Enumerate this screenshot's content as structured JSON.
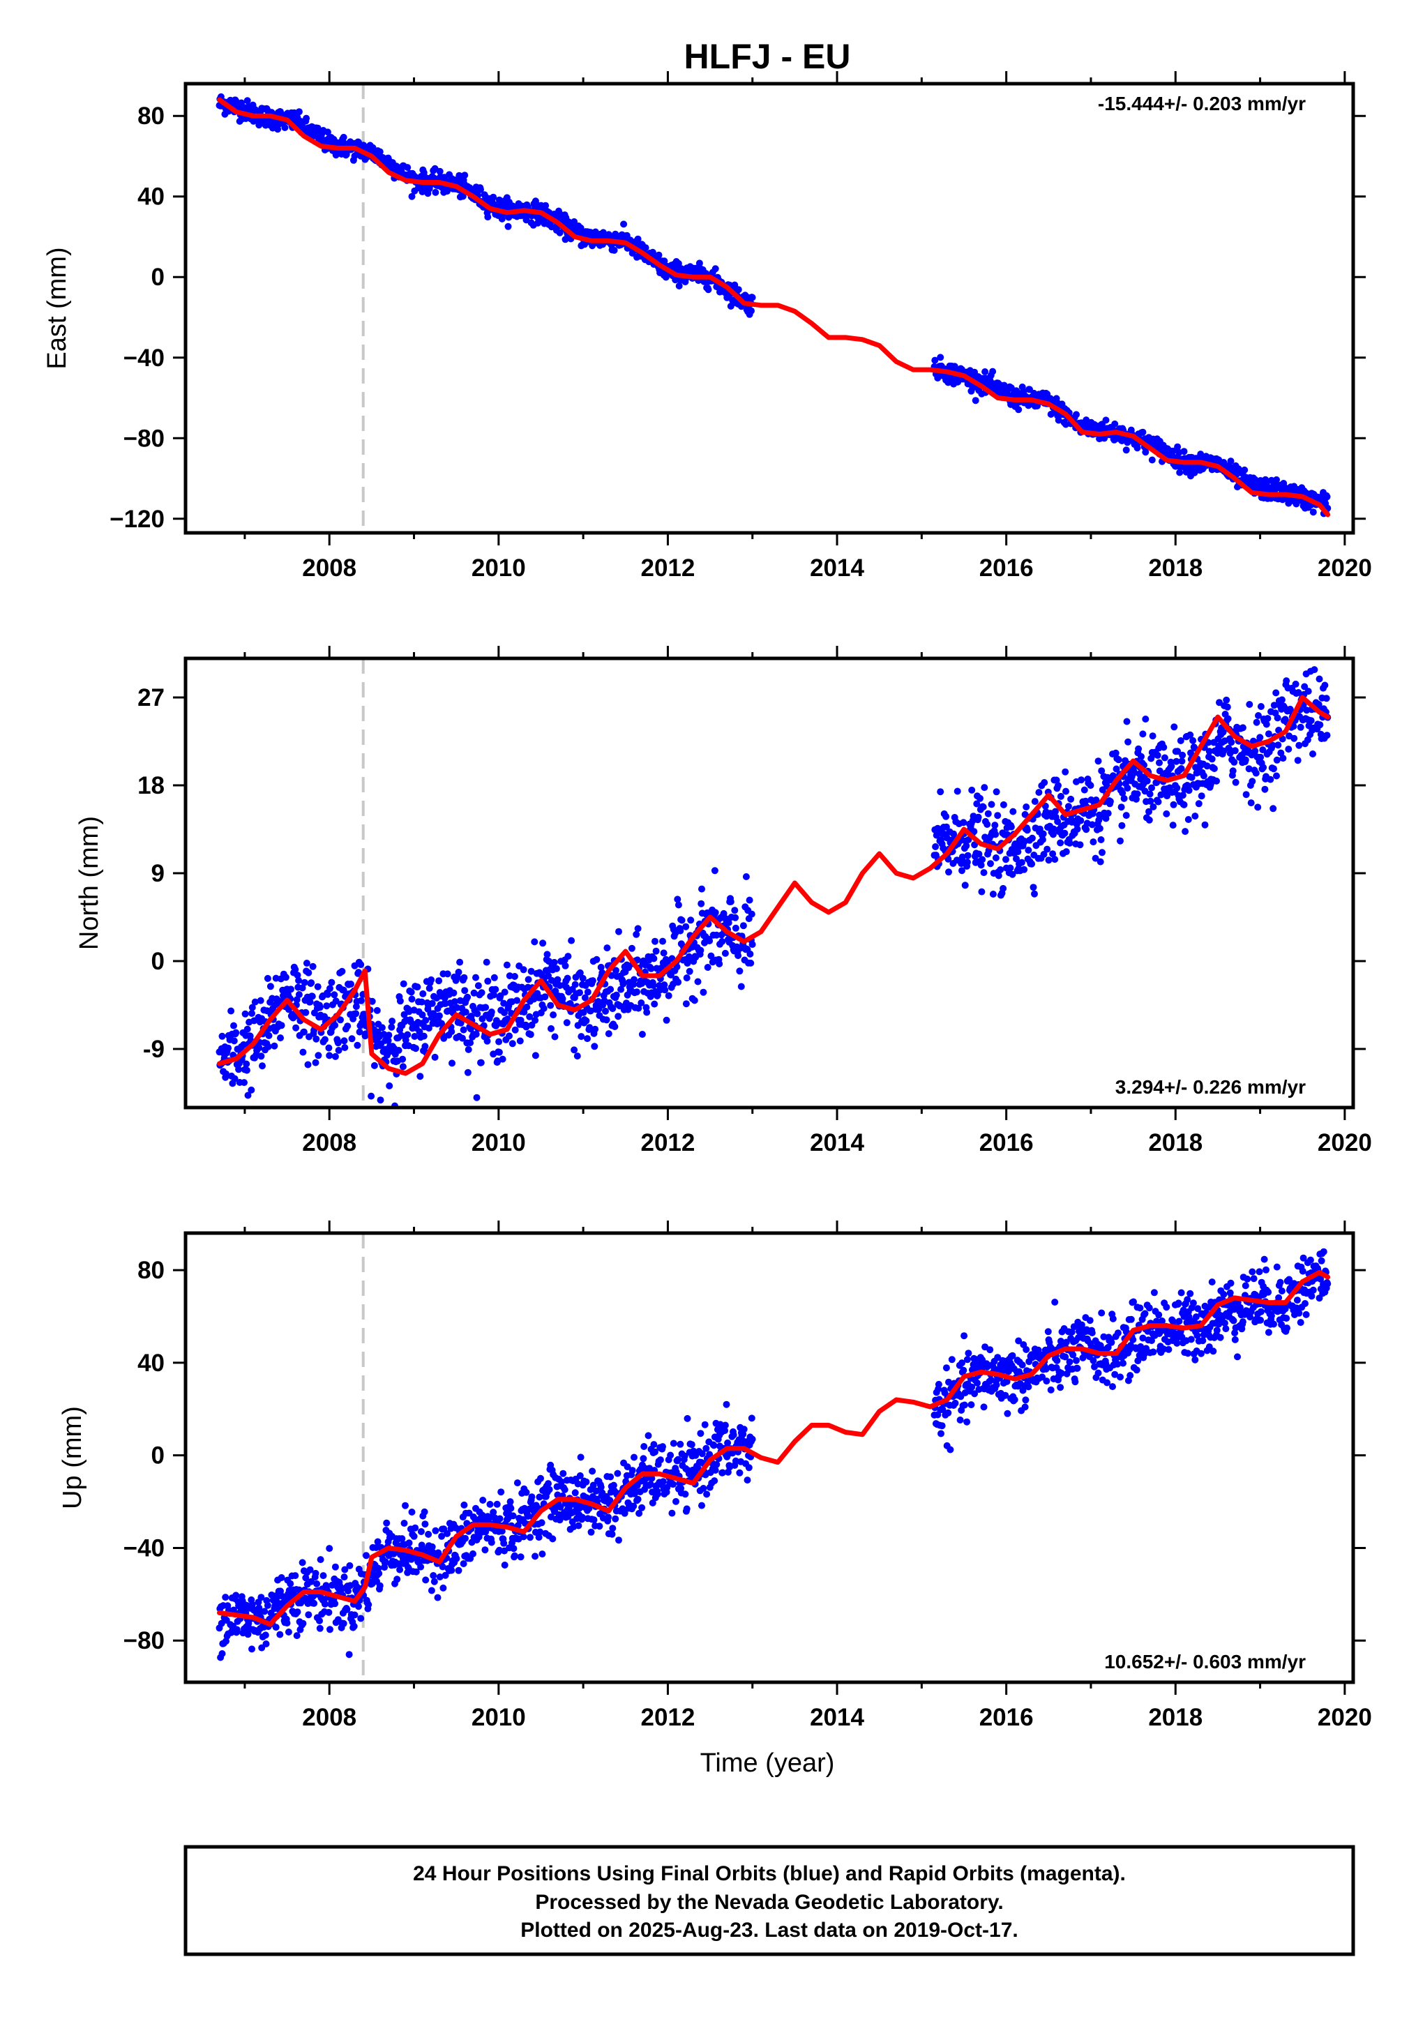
{
  "chart_data": {
    "type": "scatter",
    "title": "HLFJ - EU",
    "xlabel": "Time (year)",
    "xlim": [
      2006.3,
      2020.1
    ],
    "x_ticks": [
      2008,
      2010,
      2012,
      2014,
      2016,
      2018,
      2020
    ],
    "x_tick_labels": [
      "2008",
      "2010",
      "2012",
      "2014",
      "2016",
      "2018",
      "2020"
    ],
    "grid": false,
    "equipment_change_epoch": 2008.4,
    "observed_span": [
      2006.7,
      2019.8
    ],
    "data_gap": [
      2013.0,
      2015.15
    ],
    "series_colors": {
      "daily_positions": "#0000ff",
      "model_fit": "#ff0000",
      "equipment_change_line": "#c8c8c8"
    },
    "panels": [
      {
        "name": "east",
        "ylabel": "East (mm)",
        "ylim": [
          -127,
          96
        ],
        "y_ticks": [
          80,
          40,
          0,
          -40,
          -80,
          -120
        ],
        "y_tick_labels": [
          "80",
          "40",
          "0",
          "−40",
          "−80",
          "−120"
        ],
        "rate_text": "-15.444+/- 0.203 mm/yr",
        "rate_position": "top-right",
        "model_fit": {
          "x": [
            2006.7,
            2006.9,
            2007.1,
            2007.3,
            2007.5,
            2007.7,
            2007.9,
            2008.1,
            2008.3,
            2008.5,
            2008.7,
            2008.9,
            2009.1,
            2009.3,
            2009.5,
            2009.7,
            2009.9,
            2010.1,
            2010.3,
            2010.5,
            2010.7,
            2010.9,
            2011.1,
            2011.3,
            2011.5,
            2011.7,
            2011.9,
            2012.1,
            2012.3,
            2012.5,
            2012.7,
            2012.9,
            2013.1,
            2013.3,
            2013.5,
            2013.7,
            2013.9,
            2014.1,
            2014.3,
            2014.5,
            2014.7,
            2014.9,
            2015.1,
            2015.3,
            2015.5,
            2015.7,
            2015.9,
            2016.1,
            2016.3,
            2016.5,
            2016.7,
            2016.9,
            2017.1,
            2017.3,
            2017.5,
            2017.7,
            2017.9,
            2018.1,
            2018.3,
            2018.5,
            2018.7,
            2018.9,
            2019.1,
            2019.3,
            2019.5,
            2019.7,
            2019.8
          ],
          "y": [
            88,
            82,
            80,
            80,
            78,
            70,
            65,
            64,
            64,
            60,
            52,
            48,
            47,
            47,
            45,
            40,
            34,
            32,
            33,
            32,
            27,
            20,
            18,
            18,
            17,
            12,
            6,
            1,
            0,
            0,
            -5,
            -13,
            -14,
            -14,
            -17,
            -23,
            -30,
            -30,
            -31,
            -34,
            -42,
            -46,
            -46,
            -47,
            -49,
            -54,
            -60,
            -61,
            -61,
            -63,
            -68,
            -77,
            -78,
            -77,
            -79,
            -85,
            -91,
            -92,
            -92,
            -94,
            -100,
            -107,
            -108,
            -108,
            -109,
            -113,
            -118
          ]
        },
        "daily_positions": {
          "segments": [
            [
              2006.7,
              2013.0
            ],
            [
              2015.15,
              2019.8
            ]
          ],
          "scatter_mm": 2.5,
          "x": [
            2006.8,
            2007.2,
            2007.6,
            2008.0,
            2008.5,
            2009.0,
            2009.5,
            2010.0,
            2010.5,
            2011.0,
            2011.5,
            2012.0,
            2012.5,
            2012.9,
            2015.3,
            2015.7,
            2016.1,
            2016.5,
            2016.9,
            2017.3,
            2017.7,
            2018.1,
            2018.5,
            2018.9,
            2019.3,
            2019.7
          ],
          "y": [
            86,
            80,
            77,
            66,
            62,
            48,
            46,
            34,
            32,
            20,
            18,
            3,
            0,
            -12,
            -47,
            -52,
            -60,
            -62,
            -75,
            -77,
            -83,
            -92,
            -93,
            -104,
            -107,
            -112
          ]
        }
      },
      {
        "name": "north",
        "ylabel": "North (mm)",
        "ylim": [
          -15,
          31
        ],
        "y_ticks": [
          27,
          18,
          9,
          0,
          -9
        ],
        "y_tick_labels": [
          "27",
          "18",
          "9",
          "0",
          "-9"
        ],
        "rate_text": "3.294+/- 0.226 mm/yr",
        "rate_position": "bottom-right",
        "model_fit": {
          "x": [
            2006.7,
            2006.9,
            2007.1,
            2007.3,
            2007.5,
            2007.7,
            2007.9,
            2008.1,
            2008.3,
            2008.42,
            2008.5,
            2008.7,
            2008.9,
            2009.1,
            2009.3,
            2009.5,
            2009.7,
            2009.9,
            2010.1,
            2010.3,
            2010.5,
            2010.7,
            2010.9,
            2011.1,
            2011.3,
            2011.5,
            2011.7,
            2011.9,
            2012.1,
            2012.3,
            2012.5,
            2012.7,
            2012.9,
            2013.1,
            2013.3,
            2013.5,
            2013.7,
            2013.9,
            2014.1,
            2014.3,
            2014.5,
            2014.7,
            2014.9,
            2015.1,
            2015.3,
            2015.5,
            2015.7,
            2015.9,
            2016.1,
            2016.3,
            2016.5,
            2016.7,
            2016.9,
            2017.1,
            2017.3,
            2017.5,
            2017.7,
            2017.9,
            2018.1,
            2018.3,
            2018.5,
            2018.7,
            2018.9,
            2019.1,
            2019.3,
            2019.5,
            2019.7,
            2019.8
          ],
          "y": [
            -10.5,
            -10,
            -8.5,
            -6,
            -4,
            -6,
            -7,
            -5.5,
            -3,
            -1,
            -9.5,
            -11,
            -11.5,
            -10.5,
            -7.5,
            -5.5,
            -6.5,
            -7.5,
            -7,
            -4,
            -2,
            -4.5,
            -5,
            -4,
            -1,
            1,
            -1.5,
            -1.5,
            0,
            2.5,
            4.5,
            3,
            2,
            3,
            5.5,
            8,
            6,
            5,
            6,
            9,
            11,
            9,
            8.5,
            9.5,
            11,
            13.5,
            12,
            11.5,
            13,
            15,
            17,
            15,
            15.5,
            16,
            18.5,
            20.5,
            19,
            18.5,
            19,
            22,
            25,
            23,
            22,
            22.5,
            23.5,
            27,
            25.5,
            25
          ]
        },
        "daily_positions": {
          "segments": [
            [
              2006.7,
              2013.0
            ],
            [
              2015.15,
              2019.8
            ]
          ],
          "scatter_mm": 2.2,
          "x": [
            2006.8,
            2007.2,
            2007.5,
            2007.9,
            2008.3,
            2008.6,
            2009.4,
            2009.8,
            2010.2,
            2010.6,
            2011.0,
            2011.4,
            2011.8,
            2012.2,
            2012.5,
            2012.9,
            2015.3,
            2015.6,
            2016.0,
            2016.4,
            2016.8,
            2017.2,
            2017.5,
            2017.9,
            2018.3,
            2018.6,
            2019.0,
            2019.4,
            2019.7
          ],
          "y": [
            -10,
            -8,
            -3,
            -6,
            -4,
            -9,
            -4,
            -6,
            -5,
            -2,
            -5,
            -3,
            -2,
            1,
            3,
            2,
            12,
            13,
            11,
            14,
            15,
            16,
            19,
            18,
            19,
            23,
            21,
            26,
            25
          ]
        }
      },
      {
        "name": "up",
        "ylabel": "Up (mm)",
        "ylim": [
          -98,
          96
        ],
        "y_ticks": [
          80,
          40,
          0,
          -40,
          -80
        ],
        "y_tick_labels": [
          "80",
          "40",
          "0",
          "−40",
          "−80"
        ],
        "rate_text": "10.652+/- 0.603 mm/yr",
        "rate_position": "bottom-right",
        "model_fit": {
          "x": [
            2006.7,
            2006.9,
            2007.1,
            2007.3,
            2007.5,
            2007.7,
            2007.9,
            2008.1,
            2008.3,
            2008.42,
            2008.5,
            2008.7,
            2008.9,
            2009.1,
            2009.3,
            2009.5,
            2009.7,
            2009.9,
            2010.1,
            2010.3,
            2010.5,
            2010.7,
            2010.9,
            2011.1,
            2011.3,
            2011.5,
            2011.7,
            2011.9,
            2012.1,
            2012.3,
            2012.5,
            2012.7,
            2012.9,
            2013.1,
            2013.3,
            2013.5,
            2013.7,
            2013.9,
            2014.1,
            2014.3,
            2014.5,
            2014.7,
            2014.9,
            2015.1,
            2015.3,
            2015.5,
            2015.7,
            2015.9,
            2016.1,
            2016.3,
            2016.5,
            2016.7,
            2016.9,
            2017.1,
            2017.3,
            2017.5,
            2017.7,
            2017.9,
            2018.1,
            2018.3,
            2018.5,
            2018.7,
            2018.9,
            2019.1,
            2019.3,
            2019.5,
            2019.7,
            2019.8
          ],
          "y": [
            -68,
            -69,
            -70,
            -73,
            -65,
            -59,
            -59,
            -61,
            -63,
            -57,
            -44,
            -40,
            -41,
            -43,
            -46,
            -35,
            -30,
            -30,
            -31,
            -33,
            -24,
            -19,
            -19,
            -21,
            -24,
            -14,
            -8,
            -8,
            -10,
            -12,
            -2,
            3,
            3,
            -1,
            -3,
            6,
            13,
            13,
            10,
            9,
            19,
            24,
            23,
            21,
            24,
            34,
            36,
            35,
            33,
            35,
            43,
            46,
            46,
            44,
            44,
            54,
            56,
            56,
            55,
            56,
            65,
            68,
            67,
            66,
            66,
            75,
            79,
            77
          ]
        },
        "daily_positions": {
          "segments": [
            [
              2006.7,
              2013.0
            ],
            [
              2015.15,
              2019.8
            ]
          ],
          "scatter_mm": 7,
          "x": [
            2006.8,
            2007.2,
            2007.6,
            2008.0,
            2008.3,
            2008.7,
            2009.4,
            2009.8,
            2010.2,
            2010.6,
            2011.0,
            2011.4,
            2011.8,
            2012.2,
            2012.6,
            2012.9,
            2015.3,
            2015.7,
            2016.1,
            2016.5,
            2016.9,
            2017.3,
            2017.7,
            2018.1,
            2018.5,
            2018.9,
            2019.3,
            2019.7
          ],
          "y": [
            -69,
            -71,
            -60,
            -60,
            -63,
            -40,
            -43,
            -30,
            -31,
            -19,
            -20,
            -20,
            -8,
            -10,
            2,
            3,
            22,
            35,
            34,
            40,
            46,
            44,
            55,
            55,
            60,
            67,
            66,
            78
          ]
        }
      }
    ],
    "footer_lines": [
      "24 Hour Positions Using Final Orbits (blue) and Rapid Orbits (magenta).",
      "Processed by the Nevada Geodetic Laboratory.",
      "Plotted on 2025-Aug-23. Last data on 2019-Oct-17."
    ]
  }
}
